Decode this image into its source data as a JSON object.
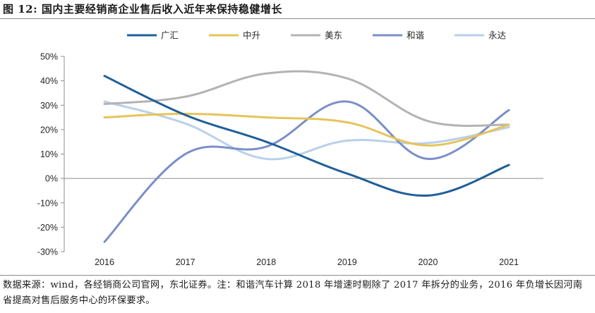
{
  "figure": {
    "title": "图 12: 国内主要经销商企业售后收入近年来保持稳健增长",
    "source_note": "数据来源：wind，各经销商公司官网，东北证券。注：和谐汽车计算 2018 年增速时剔除了 2017 年拆分的业务，2016 年负增长因河南省提高对售后服务中心的环保要求。"
  },
  "chart_data": {
    "type": "line",
    "title": "",
    "xlabel": "",
    "ylabel": "",
    "categories": [
      "2016",
      "2017",
      "2018",
      "2019",
      "2020",
      "2021"
    ],
    "y_unit": "%",
    "ylim": [
      -30,
      50
    ],
    "yticks": [
      -30,
      -20,
      -10,
      0,
      10,
      20,
      30,
      40,
      50
    ],
    "ytick_labels": [
      "-30%",
      "-20%",
      "-10%",
      "0%",
      "10%",
      "20%",
      "30%",
      "40%",
      "50%"
    ],
    "grid": false,
    "smooth": true,
    "legend_position": "top",
    "series": [
      {
        "name": "广汇",
        "color": "#1f5f99",
        "values": [
          42,
          26,
          15,
          2,
          -7,
          5.5
        ]
      },
      {
        "name": "中升",
        "color": "#e6c45a",
        "values": [
          25,
          26.5,
          25,
          23,
          13.5,
          22
        ]
      },
      {
        "name": "美东",
        "color": "#b3b3b3",
        "values": [
          30.5,
          33.5,
          43,
          41,
          23.5,
          22
        ]
      },
      {
        "name": "和谐",
        "color": "#7a8fc7",
        "values": [
          -26,
          10,
          13,
          31.5,
          8,
          28
        ]
      },
      {
        "name": "永达",
        "color": "#b9d0ea",
        "values": [
          31.5,
          22.5,
          8,
          15.5,
          14.5,
          21
        ]
      }
    ]
  }
}
